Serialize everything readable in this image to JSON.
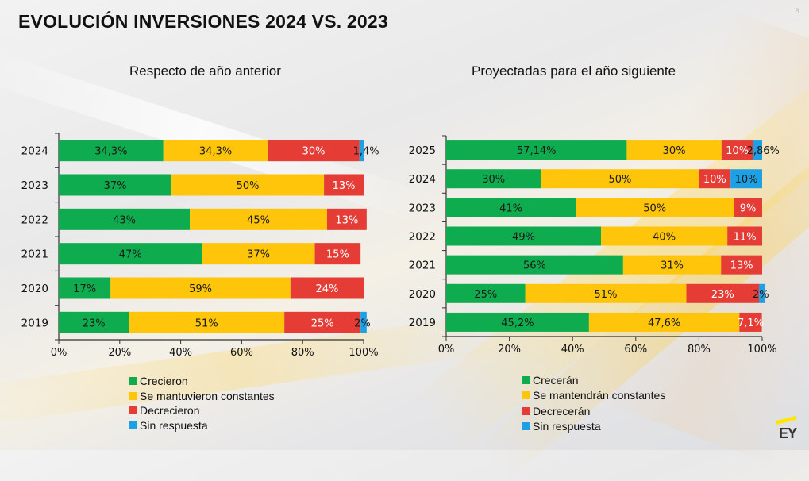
{
  "page": {
    "title": "EVOLUCIÓN INVERSIONES 2024 VS. 2023",
    "page_number": "8",
    "logo": "EY"
  },
  "colors": {
    "green": "#0fac4f",
    "yellow": "#ffc50a",
    "red": "#e53c36",
    "blue": "#1ea1e4"
  },
  "chart_data": [
    {
      "type": "bar",
      "orientation": "horizontal",
      "stacked": true,
      "title": "Respecto de año anterior",
      "categories": [
        "2024",
        "2023",
        "2022",
        "2021",
        "2020",
        "2019"
      ],
      "xlim": [
        0,
        100
      ],
      "xticks": [
        "0%",
        "20%",
        "40%",
        "60%",
        "80%",
        "100%"
      ],
      "grid": false,
      "legend_position": "bottom",
      "series": [
        {
          "name": "Crecieron",
          "color": "#0fac4f",
          "values": [
            34.3,
            37,
            43,
            47,
            17,
            23
          ],
          "labels": [
            "34,3%",
            "37%",
            "43%",
            "47%",
            "17%",
            "23%"
          ]
        },
        {
          "name": "Se mantuvieron constantes",
          "color": "#ffc50a",
          "values": [
            34.3,
            50,
            45,
            37,
            59,
            51
          ],
          "labels": [
            "34,3%",
            "50%",
            "45%",
            "37%",
            "59%",
            "51%"
          ]
        },
        {
          "name": "Decrecieron",
          "color": "#e53c36",
          "values": [
            30,
            13,
            13,
            15,
            24,
            25
          ],
          "labels": [
            "30%",
            "13%",
            "13%",
            "15%",
            "24%",
            "25%"
          ]
        },
        {
          "name": "Sin respuesta",
          "color": "#1ea1e4",
          "values": [
            1.4,
            0,
            0,
            0,
            0,
            2
          ],
          "labels": [
            "1,4%",
            "",
            "",
            "",
            "",
            "2%"
          ]
        }
      ]
    },
    {
      "type": "bar",
      "orientation": "horizontal",
      "stacked": true,
      "title": "Proyectadas para el año siguiente",
      "categories": [
        "2025",
        "2024",
        "2023",
        "2022",
        "2021",
        "2020",
        "2019"
      ],
      "xlim": [
        0,
        100
      ],
      "xticks": [
        "0%",
        "20%",
        "40%",
        "60%",
        "80%",
        "100%"
      ],
      "grid": false,
      "legend_position": "bottom",
      "series": [
        {
          "name": "Crecerán",
          "color": "#0fac4f",
          "values": [
            57.14,
            30,
            41,
            49,
            56,
            25,
            45.2
          ],
          "labels": [
            "57,14%",
            "30%",
            "41%",
            "49%",
            "56%",
            "25%",
            "45,2%"
          ]
        },
        {
          "name": "Se mantendrán constantes",
          "color": "#ffc50a",
          "values": [
            30,
            50,
            50,
            40,
            31,
            51,
            47.6
          ],
          "labels": [
            "30%",
            "50%",
            "50%",
            "40%",
            "31%",
            "51%",
            "47,6%"
          ]
        },
        {
          "name": "Decrecerán",
          "color": "#e53c36",
          "values": [
            10,
            10,
            9,
            11,
            13,
            23,
            7.1
          ],
          "labels": [
            "10%",
            "10%",
            "9%",
            "11%",
            "13%",
            "23%",
            "7,1%"
          ]
        },
        {
          "name": "Sin respuesta",
          "color": "#1ea1e4",
          "values": [
            2.86,
            10,
            0,
            0,
            0,
            2,
            0
          ],
          "labels": [
            "2,86%",
            "10%",
            "",
            "",
            "",
            "2%",
            ""
          ]
        }
      ]
    }
  ]
}
